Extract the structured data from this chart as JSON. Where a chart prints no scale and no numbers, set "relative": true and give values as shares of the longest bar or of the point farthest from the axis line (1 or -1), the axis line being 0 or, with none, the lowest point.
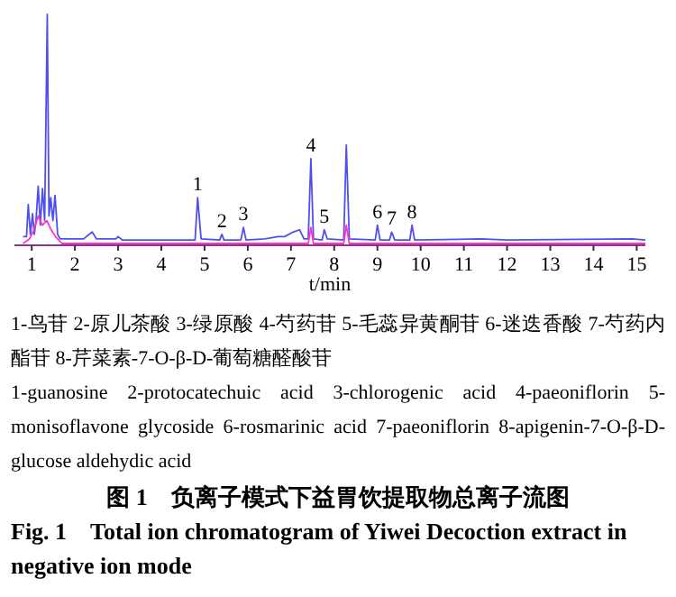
{
  "chart_data": {
    "type": "line",
    "relative": true,
    "xlim": [
      0.6,
      15.2
    ],
    "xticks": [
      1,
      2,
      3,
      4,
      5,
      6,
      7,
      8,
      9,
      10,
      11,
      12,
      13,
      14,
      15
    ],
    "xlabel": "t/min",
    "series": [
      {
        "color": "#4f4ff0",
        "x": [
          0.8,
          0.88,
          0.92,
          0.97,
          1.02,
          1.06,
          1.1,
          1.15,
          1.2,
          1.25,
          1.3,
          1.36,
          1.4,
          1.44,
          1.49,
          1.54,
          1.6,
          1.66,
          1.8,
          2.2,
          2.4,
          2.5,
          2.95,
          3.0,
          3.1,
          4.0,
          4.78,
          4.84,
          4.92,
          5.35,
          5.4,
          5.45,
          5.84,
          5.9,
          5.96,
          6.4,
          6.7,
          6.85,
          7.05,
          7.2,
          7.3,
          7.4,
          7.46,
          7.52,
          7.72,
          7.77,
          7.84,
          8.22,
          8.28,
          8.35,
          8.95,
          9.0,
          9.06,
          9.28,
          9.33,
          9.4,
          9.75,
          9.8,
          9.86,
          11.4,
          12.0,
          14.9,
          15.2
        ],
        "values": [
          0.03,
          0.03,
          0.17,
          0.04,
          0.13,
          0.04,
          0.1,
          0.25,
          0.08,
          0.24,
          0.1,
          1.0,
          0.12,
          0.2,
          0.1,
          0.21,
          0.04,
          0.02,
          0.02,
          0.02,
          0.05,
          0.02,
          0.02,
          0.03,
          0.015,
          0.015,
          0.015,
          0.2,
          0.02,
          0.015,
          0.04,
          0.015,
          0.015,
          0.07,
          0.015,
          0.02,
          0.03,
          0.03,
          0.05,
          0.06,
          0.02,
          0.02,
          0.37,
          0.02,
          0.015,
          0.06,
          0.02,
          0.015,
          0.43,
          0.02,
          0.015,
          0.08,
          0.015,
          0.015,
          0.05,
          0.015,
          0.015,
          0.08,
          0.015,
          0.02,
          0.015,
          0.02,
          0.015
        ]
      },
      {
        "color": "#ff33cc",
        "x": [
          0.8,
          0.95,
          1.05,
          1.15,
          1.25,
          1.35,
          1.45,
          1.55,
          1.7,
          7.4,
          7.46,
          7.52,
          8.22,
          8.28,
          8.35,
          15.2
        ],
        "values": [
          0,
          0.02,
          0.06,
          0.12,
          0.08,
          0.1,
          0.06,
          0.03,
          0,
          0,
          0.07,
          0,
          0,
          0.08,
          0,
          0
        ]
      }
    ],
    "annotations": [
      {
        "text": "1",
        "x": 4.84,
        "y": 0.2
      },
      {
        "text": "2",
        "x": 5.4,
        "y": 0.04
      },
      {
        "text": "3",
        "x": 5.9,
        "y": 0.07
      },
      {
        "text": "4",
        "x": 7.46,
        "y": 0.37
      },
      {
        "text": "5",
        "x": 7.77,
        "y": 0.06
      },
      {
        "text": "6",
        "x": 9.0,
        "y": 0.08
      },
      {
        "text": "7",
        "x": 9.33,
        "y": 0.05
      },
      {
        "text": "8",
        "x": 9.8,
        "y": 0.08
      },
      "1-鸟苷 2-原儿茶酸 3-绿原酸 4-芍药苷 5-毛蕊异黄酮苷 6-迷迭香酸 7-芍药内酯苷 8-芹菜素-7-O-β-D-葡萄糖醛酸苷",
      "1-guanosine 2-protocatechuic acid 3-chlorogenic acid 4-paeoniflorin 5-monisoflavone glycoside 6-rosmarinic acid 7-paeoniflorin 8-apigenin-7-O-β-D-glucose aldehydic acid",
      "图 1　负离子模式下益胃饮提取物总离子流图",
      "Fig. 1　Total ion chromatogram of Yiwei Decoction extract in negative ion mode"
    ]
  }
}
